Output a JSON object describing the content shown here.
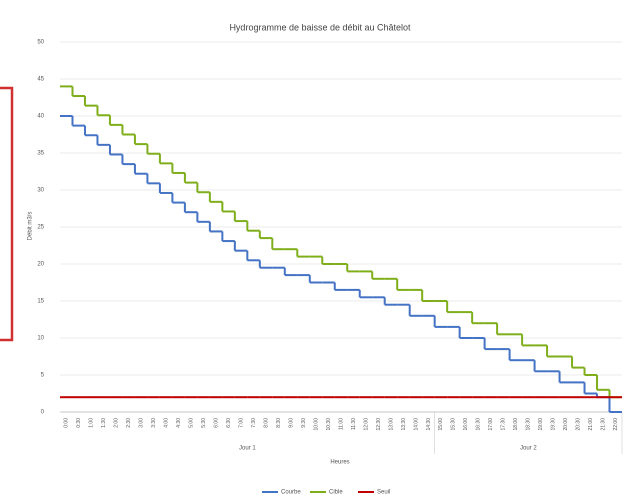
{
  "chart_data": {
    "type": "step-line",
    "title": "Hydrogramme de baisse de débit au Châtelot",
    "y_label": "Débit m3/s",
    "x_label": "Heures",
    "categories": [
      "0:00",
      "0:30",
      "1:00",
      "1:30",
      "2:00",
      "2:30",
      "3:00",
      "3:30",
      "4:00",
      "4:30",
      "5:00",
      "5:30",
      "6:00",
      "6:30",
      "7:00",
      "7:30",
      "8:00",
      "8:30",
      "9:00",
      "9:30",
      "10:00",
      "10:30",
      "11:00",
      "11:30",
      "12:00",
      "12:30",
      "13:00",
      "13:30",
      "14:00",
      "14:30",
      "15:00",
      "15:30",
      "16:00",
      "16:30",
      "17:00",
      "17:30",
      "18:00",
      "18:30",
      "19:00",
      "19:30",
      "20:00",
      "20:30",
      "21:00",
      "21:30",
      "22:00"
    ],
    "x_groups": [
      {
        "label": "Jour 1",
        "count": 30
      },
      {
        "label": "Jour 2",
        "count": 15
      }
    ],
    "series": [
      {
        "name": "Courbe",
        "color": "#4472c4",
        "values": [
          40,
          38.7,
          37.4,
          36.1,
          34.8,
          33.5,
          32.2,
          30.9,
          29.6,
          28.3,
          27,
          25.7,
          24.4,
          23.1,
          21.8,
          20.5,
          19.5,
          19.5,
          18.5,
          18.5,
          17.5,
          17.5,
          16.5,
          16.5,
          15.5,
          15.5,
          14.5,
          14.5,
          13,
          13,
          11.5,
          11.5,
          10,
          10,
          8.5,
          8.5,
          7,
          7,
          5.5,
          5.5,
          4,
          4,
          2.5,
          2,
          0
        ]
      },
      {
        "name": "Cible",
        "color": "#7fae1b",
        "values": [
          44,
          42.7,
          41.4,
          40.1,
          38.8,
          37.5,
          36.2,
          34.9,
          33.6,
          32.3,
          31,
          29.7,
          28.4,
          27.1,
          25.8,
          24.5,
          23.5,
          22,
          22,
          21,
          21,
          20,
          20,
          19,
          19,
          18,
          18,
          16.5,
          16.5,
          15,
          15,
          13.5,
          13.5,
          12,
          12,
          10.5,
          10.5,
          9,
          9,
          7.5,
          7.5,
          6,
          5,
          3,
          2
        ]
      },
      {
        "name": "Seuil",
        "color": "#c00000",
        "values": [
          2,
          2,
          2,
          2,
          2,
          2,
          2,
          2,
          2,
          2,
          2,
          2,
          2,
          2,
          2,
          2,
          2,
          2,
          2,
          2,
          2,
          2,
          2,
          2,
          2,
          2,
          2,
          2,
          2,
          2,
          2,
          2,
          2,
          2,
          2,
          2,
          2,
          2,
          2,
          2,
          2,
          2,
          2,
          2,
          2
        ]
      }
    ],
    "ylim": [
      0,
      50
    ],
    "yticks": [
      0,
      5,
      10,
      15,
      20,
      25,
      30,
      35,
      40,
      45,
      50
    ],
    "grid": true
  }
}
